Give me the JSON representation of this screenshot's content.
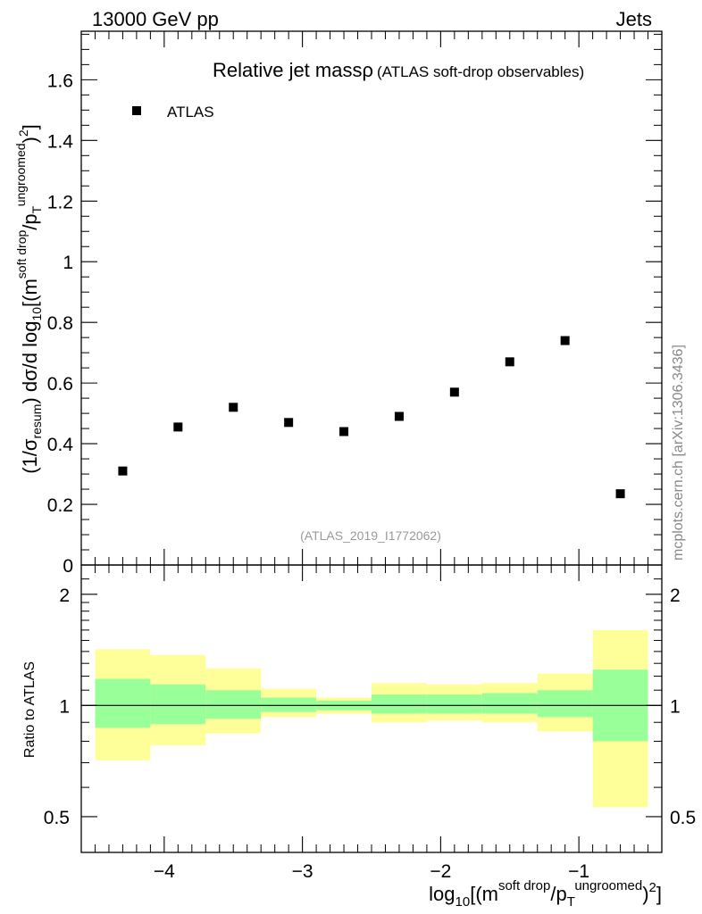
{
  "header": {
    "left": "13000 GeV pp",
    "right": "Jets"
  },
  "watermark": "mcplots.cern.ch [arXiv:1306.3436]",
  "colors": {
    "band_outer": "#ffff99",
    "band_inner": "#99ff99",
    "marker": "#000000",
    "ref_tag": "#999999"
  },
  "chart_data": [
    {
      "type": "scatter",
      "title": "Relative jet massρ",
      "subtitle": "(ATLAS soft-drop observables)",
      "ylabel_parts": [
        "(1/σ",
        "resum",
        ") dσ/d log",
        "10",
        "[(m",
        "soft drop",
        "/p",
        "T",
        "ungroomed",
        ")",
        "2",
        "]"
      ],
      "legend": {
        "label": "ATLAS",
        "placement": "top-left"
      },
      "ref_tag": "(ATLAS_2019_I1772062)",
      "xlim": [
        -4.6,
        -0.4
      ],
      "ylim": [
        0,
        1.76
      ],
      "yticks": [
        0,
        0.2,
        0.4,
        0.6,
        0.8,
        1,
        1.2,
        1.4,
        1.6
      ],
      "ytick_labels": [
        "0",
        "0.2",
        "0.4",
        "0.6",
        "0.8",
        "1",
        "1.2",
        "1.4",
        "1.6"
      ],
      "series": [
        {
          "name": "ATLAS",
          "x": [
            -4.3,
            -3.9,
            -3.5,
            -3.1,
            -2.7,
            -2.3,
            -1.9,
            -1.5,
            -1.1,
            -0.7
          ],
          "y": [
            0.31,
            0.455,
            0.52,
            0.47,
            0.44,
            0.49,
            0.57,
            0.67,
            0.74,
            0.235
          ]
        }
      ]
    },
    {
      "type": "area",
      "ylabel": "Ratio to ATLAS",
      "xlabel_parts": [
        "log",
        "10",
        "[(m",
        "soft drop",
        "/p",
        "T",
        "ungroomed",
        ")",
        "2",
        "]"
      ],
      "xlim": [
        -4.6,
        -0.4
      ],
      "ylim": [
        0.4,
        2.4
      ],
      "yscale": "log",
      "xticks": [
        -4,
        -3,
        -2,
        -1
      ],
      "xtick_labels": [
        "−4",
        "−3",
        "−2",
        "−1"
      ],
      "yticks": [
        0.5,
        1,
        2
      ],
      "ytick_labels": [
        "0.5",
        "1",
        "2"
      ],
      "bins": [
        {
          "x0": -4.5,
          "x1": -4.1,
          "outer": [
            0.71,
            1.42
          ],
          "inner": [
            0.87,
            1.18
          ]
        },
        {
          "x0": -4.1,
          "x1": -3.7,
          "outer": [
            0.78,
            1.37
          ],
          "inner": [
            0.89,
            1.14
          ]
        },
        {
          "x0": -3.7,
          "x1": -3.3,
          "outer": [
            0.84,
            1.26
          ],
          "inner": [
            0.92,
            1.1
          ]
        },
        {
          "x0": -3.3,
          "x1": -2.9,
          "outer": [
            0.93,
            1.11
          ],
          "inner": [
            0.96,
            1.05
          ]
        },
        {
          "x0": -2.9,
          "x1": -2.5,
          "outer": [
            0.95,
            1.05
          ],
          "inner": [
            0.97,
            1.03
          ]
        },
        {
          "x0": -2.5,
          "x1": -2.1,
          "outer": [
            0.9,
            1.15
          ],
          "inner": [
            0.95,
            1.07
          ]
        },
        {
          "x0": -2.1,
          "x1": -1.7,
          "outer": [
            0.91,
            1.14
          ],
          "inner": [
            0.95,
            1.07
          ]
        },
        {
          "x0": -1.7,
          "x1": -1.3,
          "outer": [
            0.9,
            1.15
          ],
          "inner": [
            0.95,
            1.08
          ]
        },
        {
          "x0": -1.3,
          "x1": -0.9,
          "outer": [
            0.85,
            1.22
          ],
          "inner": [
            0.93,
            1.1
          ]
        },
        {
          "x0": -0.9,
          "x1": -0.5,
          "outer": [
            0.53,
            1.6
          ],
          "inner": [
            0.8,
            1.25
          ]
        }
      ],
      "reference_line": 1
    }
  ]
}
